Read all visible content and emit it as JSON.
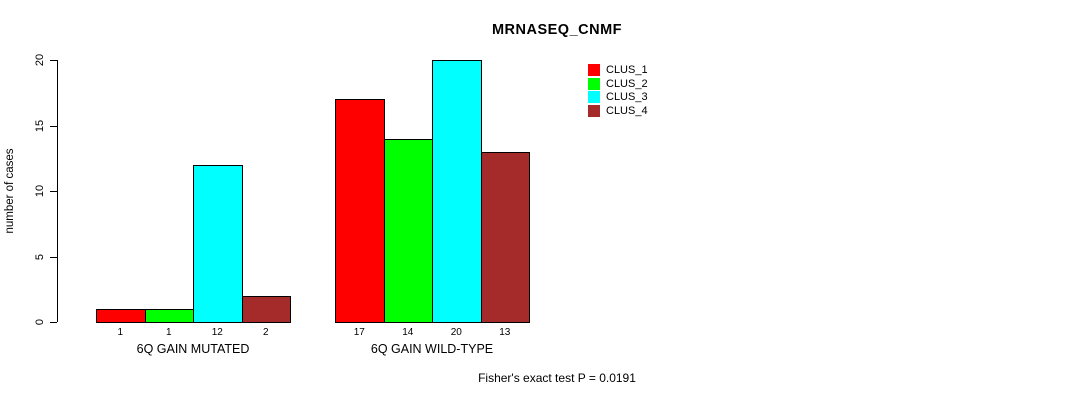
{
  "chart_data": {
    "type": "bar",
    "title": "MRNASEQ_CNMF",
    "ylabel": "number of cases",
    "xlabel": "",
    "categories": [
      "6Q GAIN MUTATED",
      "6Q GAIN WILD-TYPE"
    ],
    "series": [
      {
        "name": "CLUS_1",
        "color": "#ff0000",
        "values": [
          1,
          17
        ]
      },
      {
        "name": "CLUS_2",
        "color": "#00ff00",
        "values": [
          1,
          14
        ]
      },
      {
        "name": "CLUS_3",
        "color": "#00ffff",
        "values": [
          12,
          20
        ]
      },
      {
        "name": "CLUS_4",
        "color": "#a52a2a",
        "values": [
          2,
          13
        ]
      }
    ],
    "ylim": [
      0,
      20
    ],
    "yticks": [
      0,
      5,
      10,
      15,
      20
    ],
    "grid": false,
    "bar_value_labels_shown": true,
    "legend": {
      "position": "upper-right",
      "entries": [
        "CLUS_1",
        "CLUS_2",
        "CLUS_3",
        "CLUS_4"
      ]
    },
    "annotation": "Fisher's exact test P = 0.0191"
  }
}
